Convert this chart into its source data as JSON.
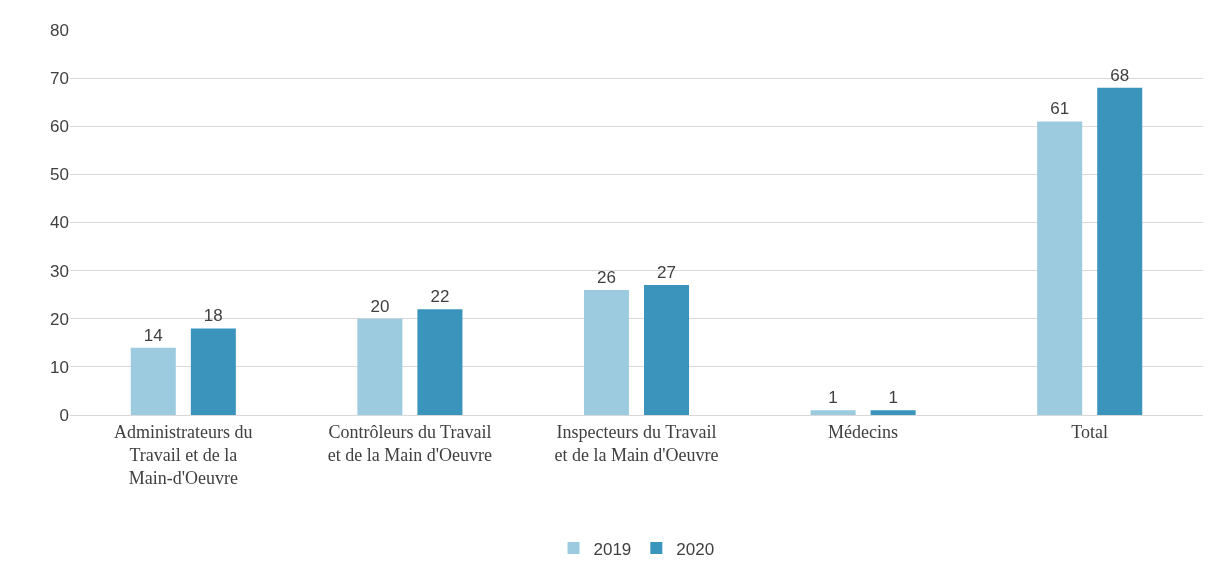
{
  "chart_data": {
    "type": "bar",
    "categories": [
      "Administrateurs du Travail et de la Main-d'Oeuvre",
      "Contrôleurs du Travail et de la Main d'Oeuvre",
      "Inspecteurs du Travail et de la Main d'Oeuvre",
      "Médecins",
      "Total"
    ],
    "series": [
      {
        "name": "2019",
        "color": "#9ccbe0",
        "values": [
          14,
          20,
          26,
          1,
          61
        ]
      },
      {
        "name": "2020",
        "color": "#3a94bb",
        "values": [
          18,
          22,
          27,
          1,
          68
        ]
      }
    ],
    "ylim": [
      0,
      80
    ],
    "yticks": [
      0,
      10,
      20,
      30,
      40,
      50,
      60,
      70,
      80
    ],
    "grid": "y",
    "legend": "bottom",
    "data_labels": true
  }
}
